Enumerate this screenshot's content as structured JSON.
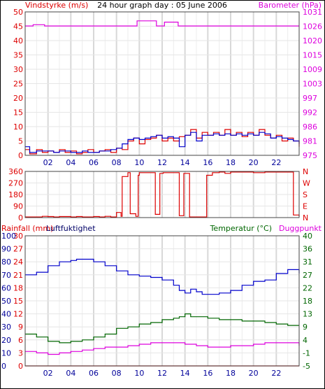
{
  "chart_data": [
    {
      "type": "line",
      "title": "24 hour graph day : 05 June 2006",
      "ylabel_left": "Vindstyrke (m/s)",
      "ylabel_right": "Barometer (hPa)",
      "x_ticks": [
        "02",
        "04",
        "06",
        "08",
        "10",
        "12",
        "14",
        "16",
        "18",
        "20",
        "22"
      ],
      "xlim": [
        0,
        24
      ],
      "y_left_ticks": [
        "0",
        "5",
        "10",
        "15",
        "20",
        "25",
        "30",
        "35",
        "40",
        "45",
        "50"
      ],
      "y_left_lim": [
        0,
        50
      ],
      "y_right_ticks": [
        "975",
        "981",
        "986",
        "992",
        "997",
        "1003",
        "1009",
        "1015",
        "1020",
        "1026",
        "1031"
      ],
      "y_right_lim": [
        975,
        1031
      ],
      "grid": true,
      "series": [
        {
          "axis": "right",
          "color": "#dd00dd",
          "x": [
            0,
            0.5,
            0.7,
            1.5,
            1.7,
            9.7,
            9.8,
            11.4,
            11.5,
            12.0,
            12.2,
            13.2,
            13.4,
            24
          ],
          "y": [
            1025.5,
            1025.5,
            1026.0,
            1026.0,
            1025.5,
            1025.5,
            1027.5,
            1027.5,
            1025.5,
            1025.5,
            1027.0,
            1027.0,
            1025.5,
            1025.5
          ]
        },
        {
          "axis": "left",
          "color": "#dd0000",
          "x": [
            0,
            0.4,
            1,
            1.5,
            2,
            2.5,
            3,
            3.5,
            4,
            4.5,
            5,
            5.5,
            6,
            6.5,
            7,
            7.5,
            8,
            8.5,
            9,
            9.5,
            10,
            10.5,
            11,
            11.5,
            12,
            12.5,
            13,
            13.5,
            14,
            14.5,
            15,
            15.5,
            16,
            16.5,
            17,
            17.5,
            18,
            18.5,
            19,
            19.5,
            20,
            20.5,
            21,
            21.5,
            22,
            22.5,
            23,
            23.5,
            24
          ],
          "y": [
            2,
            0.5,
            2,
            1,
            1.5,
            1,
            2,
            1,
            1.5,
            0.5,
            1,
            2,
            1,
            1.5,
            2,
            1,
            2.5,
            2,
            5,
            6,
            4,
            5.5,
            6,
            7,
            5,
            6,
            5,
            6.5,
            7,
            9,
            6,
            8,
            7,
            8,
            7,
            9,
            7,
            8,
            6.5,
            8,
            7,
            9,
            7,
            6,
            7,
            5,
            6,
            5,
            3
          ]
        },
        {
          "axis": "left",
          "color": "#0000cc",
          "x": [
            0,
            0.4,
            1,
            1.5,
            2,
            2.5,
            3,
            3.5,
            4,
            4.5,
            5,
            5.5,
            6,
            6.5,
            7,
            7.5,
            8,
            8.5,
            9,
            9.5,
            10,
            10.5,
            11,
            11.5,
            12,
            12.5,
            13,
            13.5,
            14,
            14.5,
            15,
            15.5,
            16,
            16.5,
            17,
            17.5,
            18,
            18.5,
            19,
            19.5,
            20,
            20.5,
            21,
            21.5,
            22,
            22.5,
            23,
            23.5,
            24
          ],
          "y": [
            3,
            1,
            1.5,
            1.5,
            1.5,
            1,
            1.5,
            1.5,
            1,
            1,
            1.5,
            1,
            1,
            1.5,
            1.5,
            2,
            2.5,
            4,
            5.5,
            6,
            5.5,
            6,
            6.5,
            7,
            6,
            6.5,
            6,
            3,
            7,
            8,
            5,
            7,
            7,
            7.5,
            7,
            7.5,
            7,
            7.5,
            7,
            7.5,
            7,
            8,
            7.5,
            6,
            6.5,
            6,
            5.5,
            5,
            4
          ]
        }
      ]
    },
    {
      "type": "line",
      "x_ticks": [],
      "xlim": [
        0,
        24
      ],
      "y_left_ticks": [
        "0",
        "90",
        "180",
        "270",
        "360"
      ],
      "y_left_lim": [
        0,
        360
      ],
      "y_right_ticks": [
        "N",
        "E",
        "S",
        "W",
        "N"
      ],
      "grid": true,
      "series": [
        {
          "axis": "left",
          "color": "#dd0000",
          "x": [
            0,
            1,
            1.5,
            2,
            2.5,
            3,
            4,
            4.5,
            5,
            6,
            6.5,
            7,
            7.5,
            8,
            8.4,
            8.5,
            8.8,
            9,
            9.2,
            9.4,
            9.7,
            9.9,
            10,
            10.2,
            11.2,
            11.4,
            11.6,
            11.8,
            12,
            12.1,
            13.3,
            13.5,
            13.7,
            13.9,
            14.2,
            14.4,
            15.7,
            15.9,
            16.2,
            16.4,
            17,
            17.5,
            18,
            19,
            20,
            21,
            22,
            23,
            23.3,
            23.5,
            24
          ],
          "y": [
            5,
            5,
            10,
            8,
            5,
            8,
            5,
            8,
            5,
            8,
            5,
            10,
            5,
            40,
            10,
            320,
            320,
            350,
            30,
            30,
            10,
            330,
            350,
            350,
            350,
            25,
            25,
            345,
            345,
            350,
            350,
            15,
            15,
            345,
            345,
            5,
            5,
            330,
            330,
            350,
            355,
            345,
            355,
            355,
            350,
            355,
            355,
            355,
            355,
            20,
            10
          ]
        }
      ]
    },
    {
      "type": "line",
      "ylabel_left": "Rainfall (mm)",
      "ylabel_left2": "Luftfuktighet",
      "ylabel_right": "Temperatur (°C)",
      "ylabel_right2": "Duggpunkt",
      "x_ticks": [
        "02",
        "04",
        "06",
        "08",
        "10",
        "12",
        "14",
        "16",
        "18",
        "20",
        "22"
      ],
      "xlim": [
        0,
        24
      ],
      "y_left_ticks": [
        "0",
        "3",
        "6",
        "9",
        "12",
        "15",
        "18",
        "21",
        "24",
        "27",
        "30"
      ],
      "y_left_lim": [
        0,
        30
      ],
      "y_left2_ticks": [
        "0",
        "10",
        "20",
        "30",
        "40",
        "50",
        "60",
        "70",
        "80",
        "90",
        "100"
      ],
      "y_right_ticks": [
        "-5",
        "-1",
        "4",
        "9",
        "13",
        "18",
        "22",
        "27",
        "31",
        "36",
        "40"
      ],
      "y_right_lim": [
        -5,
        40
      ],
      "grid": true,
      "series": [
        {
          "axis": "left",
          "color": "#dd0000",
          "x": [
            0,
            24
          ],
          "y": [
            0,
            0
          ]
        },
        {
          "axis": "left2",
          "color": "#0000cc",
          "x": [
            0,
            1,
            2,
            3,
            4,
            4.5,
            5,
            6,
            7,
            8,
            9,
            10,
            11,
            12,
            13,
            13.5,
            14,
            14.5,
            15,
            15.5,
            16,
            17,
            18,
            19,
            20,
            21,
            22,
            23,
            24
          ],
          "y": [
            70,
            72,
            77,
            80,
            81,
            82,
            82,
            80,
            77,
            73,
            70,
            69,
            68,
            66,
            62,
            58,
            56,
            59,
            57,
            55,
            55,
            56,
            58,
            62,
            65,
            66,
            71,
            74,
            71
          ]
        },
        {
          "axis": "right",
          "color": "#006600",
          "x": [
            0,
            1,
            2,
            3,
            4,
            5,
            6,
            7,
            8,
            9,
            10,
            11,
            12,
            13,
            13.5,
            14,
            14.5,
            15,
            16,
            17,
            18,
            19,
            20,
            21,
            22,
            23,
            24
          ],
          "y": [
            6,
            5,
            3.5,
            3,
            3.5,
            4,
            5,
            6,
            8,
            8.5,
            9.5,
            10,
            11,
            11.5,
            12,
            13,
            12,
            12,
            11.5,
            11,
            11,
            10.5,
            10.5,
            10,
            9.5,
            9,
            9
          ]
        },
        {
          "axis": "right",
          "color": "#dd00dd",
          "x": [
            0,
            1,
            2,
            3,
            4,
            5,
            6,
            7,
            8,
            9,
            10,
            11,
            12,
            13,
            14,
            15,
            16,
            17,
            18,
            19,
            20,
            21,
            22,
            23,
            24
          ],
          "y": [
            0,
            -0.5,
            -1,
            -0.5,
            0,
            0.5,
            1,
            1.5,
            1.5,
            2,
            2.5,
            3,
            3,
            3,
            2.5,
            2,
            1.5,
            1.5,
            2,
            2,
            2.5,
            3,
            3,
            3,
            2
          ]
        }
      ]
    }
  ]
}
